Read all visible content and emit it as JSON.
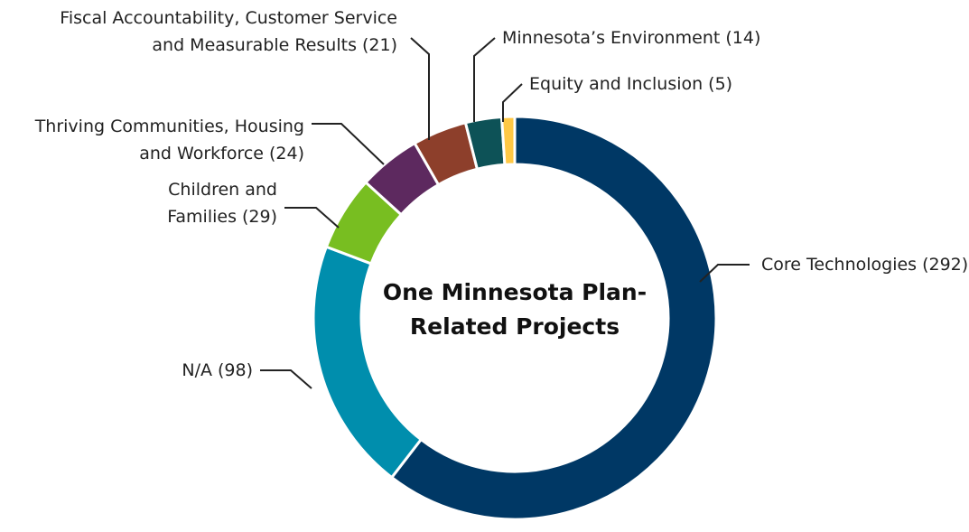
{
  "chart_data": {
    "type": "donut",
    "title": "One Minnesota Plan-Related Projects",
    "categories": [
      "Core Technologies",
      "N/A",
      "Children and Families",
      "Thriving Communities, Housing and Workforce",
      "Fiscal Accountability, Customer Service and Measurable Results",
      "Minnesota’s Environment",
      "Equity and Inclusion"
    ],
    "values": [
      292,
      98,
      29,
      24,
      21,
      14,
      5
    ],
    "value_labels": [
      "(292)",
      "(98)",
      "(29)",
      "(24)",
      "(21)",
      "(14)",
      "(5)"
    ],
    "colors": [
      "#003865",
      "#008ead",
      "#78be21",
      "#5d295f",
      "#8d3f2b",
      "#0d5257",
      "#ffc845"
    ]
  }
}
